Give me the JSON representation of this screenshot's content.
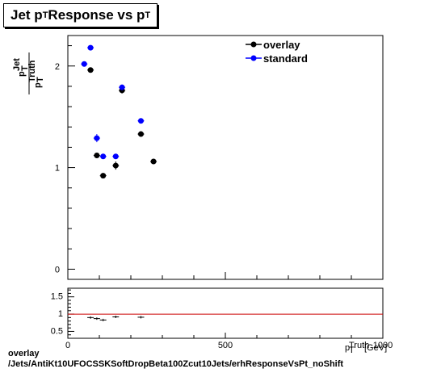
{
  "title": {
    "main": "Jet p",
    "sub1": "T",
    "mid": " Response vs p",
    "sub2": "T"
  },
  "footer": {
    "line1": "overlay",
    "line2": "/Jets/AntiKt10UFOCSSKSoftDropBeta100Zcut10Jets/erhResponseVsPt_noShift"
  },
  "colors": {
    "overlay": "#000000",
    "standard": "#0000ff",
    "ratio_line": "#cc0000"
  },
  "chart_data": [
    {
      "type": "scatter",
      "title": "Jet pT Response vs pT",
      "ylabel": "pT Jet / pT Truth",
      "xlim": [
        0,
        1000
      ],
      "ylim": [
        -0.1,
        2.3
      ],
      "yticks": [
        0,
        1,
        2
      ],
      "xticklabels": [],
      "legend": {
        "placement": "top-right",
        "entries": [
          "overlay",
          "standard"
        ]
      },
      "series": [
        {
          "name": "overlay",
          "points": [
            {
              "x": 72,
              "y": 1.96,
              "yerr": 0.02
            },
            {
              "x": 92,
              "y": 1.12,
              "yerr": 0.02
            },
            {
              "x": 112,
              "y": 0.92,
              "yerr": 0.02
            },
            {
              "x": 152,
              "y": 1.02,
              "yerr": 0.04
            },
            {
              "x": 172,
              "y": 1.76,
              "yerr": 0.03
            },
            {
              "x": 232,
              "y": 1.33,
              "yerr": 0.02
            },
            {
              "x": 272,
              "y": 1.06,
              "yerr": 0.02
            }
          ]
        },
        {
          "name": "standard",
          "points": [
            {
              "x": 52,
              "y": 2.02,
              "yerr": 0.02
            },
            {
              "x": 72,
              "y": 2.18,
              "yerr": 0.02
            },
            {
              "x": 92,
              "y": 1.29,
              "yerr": 0.04
            },
            {
              "x": 112,
              "y": 1.11,
              "yerr": 0.02
            },
            {
              "x": 152,
              "y": 1.11,
              "yerr": 0.02
            },
            {
              "x": 172,
              "y": 1.79,
              "yerr": 0.02
            },
            {
              "x": 232,
              "y": 1.46,
              "yerr": 0.02
            }
          ]
        }
      ]
    },
    {
      "type": "scatter",
      "xlim": [
        0,
        1000
      ],
      "ylim": [
        0.3,
        1.75
      ],
      "yticks": [
        0.5,
        1,
        1.5
      ],
      "xticklabels": [
        "0",
        "500",
        "1000"
      ],
      "xlabel": "p Truth T [GeV]",
      "reference_line": 1.0,
      "series": [
        {
          "name": "ratio",
          "points": [
            {
              "x": 72,
              "y": 0.9
            },
            {
              "x": 92,
              "y": 0.87
            },
            {
              "x": 112,
              "y": 0.83
            },
            {
              "x": 152,
              "y": 0.92
            },
            {
              "x": 232,
              "y": 0.91
            }
          ]
        }
      ]
    }
  ]
}
